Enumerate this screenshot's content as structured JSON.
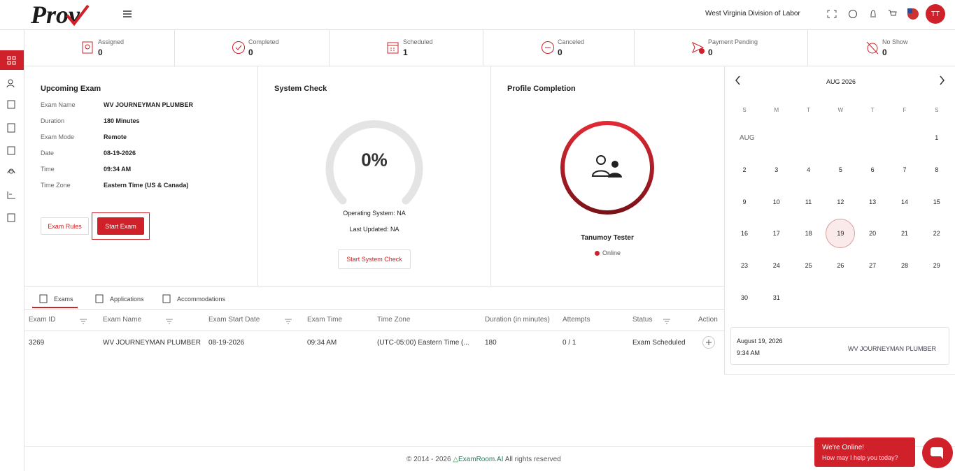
{
  "header": {
    "logo": "Prov",
    "org": "West Virginia Division of Labor",
    "avatar": "TT"
  },
  "stats": [
    {
      "label": "Assigned",
      "value": 0
    },
    {
      "label": "Completed",
      "value": 0
    },
    {
      "label": "Scheduled",
      "value": 1
    },
    {
      "label": "Canceled",
      "value": 0
    },
    {
      "label": "Payment Pending",
      "value": 0
    },
    {
      "label": "No Show",
      "value": 0
    }
  ],
  "upcoming_exam": {
    "title": "Upcoming Exam",
    "fields": [
      [
        "Exam Name",
        "WV JOURNEYMAN PLUMBER"
      ],
      [
        "Duration",
        "180 Minutes"
      ],
      [
        "Exam Mode",
        "Remote"
      ],
      [
        "Date",
        "08-19-2026"
      ],
      [
        "Time",
        "09:34 AM"
      ],
      [
        "Time Zone",
        "Eastern Time (US & Canada)"
      ]
    ],
    "buttons": [
      "Exam Rules",
      "Start Exam"
    ]
  },
  "system_check": {
    "title": "System Check",
    "percent": "0%",
    "os": "Operating System: NA",
    "updated": "Last Updated: NA",
    "button": "Start System Check"
  },
  "profile": {
    "title": "Profile Completion",
    "name": "Tanumoy Tester",
    "status": "Online"
  },
  "tabs": [
    "Exams",
    "Applications",
    "Accommodations"
  ],
  "table": {
    "headers": [
      "Exam ID",
      "Exam Name",
      "Exam Start Date",
      "Exam Time",
      "Time Zone",
      "Duration (in minutes)",
      "Attempts",
      "Status",
      "Action"
    ],
    "rows": [
      [
        "3269",
        "WV JOURNEYMAN PLUMBER",
        "08-19-2026",
        "09:34 AM",
        "(UTC-05:00) Eastern Time (...",
        "180",
        "0 / 1",
        "Exam Scheduled"
      ]
    ]
  },
  "calendar": {
    "month": "AUG 2026",
    "weekdays": [
      "S",
      "M",
      "T",
      "W",
      "T",
      "F",
      "S"
    ],
    "month_label": "AUG",
    "days": [
      1,
      2,
      3,
      4,
      5,
      6,
      7,
      8,
      9,
      10,
      11,
      12,
      13,
      14,
      15,
      16,
      17,
      18,
      19,
      20,
      21,
      22,
      23,
      24,
      25,
      26,
      27,
      28,
      29,
      30,
      31
    ],
    "selected_day": 19,
    "event": {
      "date": "August 19, 2026",
      "time": "9:34 AM",
      "name": "WV JOURNEYMAN PLUMBER"
    }
  },
  "footer": {
    "copyright": "© 2014 - 2026",
    "brand": "ExamRoom.AI",
    "rights": "All rights reserved"
  },
  "chat": {
    "title": "We're Online!",
    "subtitle": "How may I help you today?"
  }
}
